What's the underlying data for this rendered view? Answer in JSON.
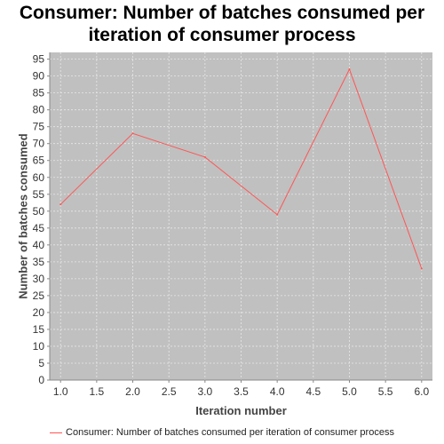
{
  "chart_data": {
    "type": "line",
    "title_lines": [
      "Consumer: Number of batches consumed per",
      "iteration of consumer process"
    ],
    "xlabel": "Iteration number",
    "ylabel": "Number of batches consumed",
    "xlim": [
      0.85,
      6.15
    ],
    "ylim": [
      0,
      97
    ],
    "x_ticks": [
      "1.0",
      "1.5",
      "2.0",
      "2.5",
      "3.0",
      "3.5",
      "4.0",
      "4.5",
      "5.0",
      "5.5",
      "6.0"
    ],
    "y_ticks": [
      0,
      5,
      10,
      15,
      20,
      25,
      30,
      35,
      40,
      45,
      50,
      55,
      60,
      65,
      70,
      75,
      80,
      85,
      90,
      95
    ],
    "grid": true,
    "legend_placement": "bottom",
    "colors": {
      "plot_bg": "#c0c0c0",
      "series": "#ff5555",
      "grid": "#e8e8e8"
    },
    "series": [
      {
        "name": "Consumer: Number of batches consumed per iteration of consumer process",
        "x": [
          1,
          2,
          3,
          4,
          5,
          6
        ],
        "values": [
          52,
          73,
          66,
          49,
          92,
          33
        ]
      }
    ]
  }
}
